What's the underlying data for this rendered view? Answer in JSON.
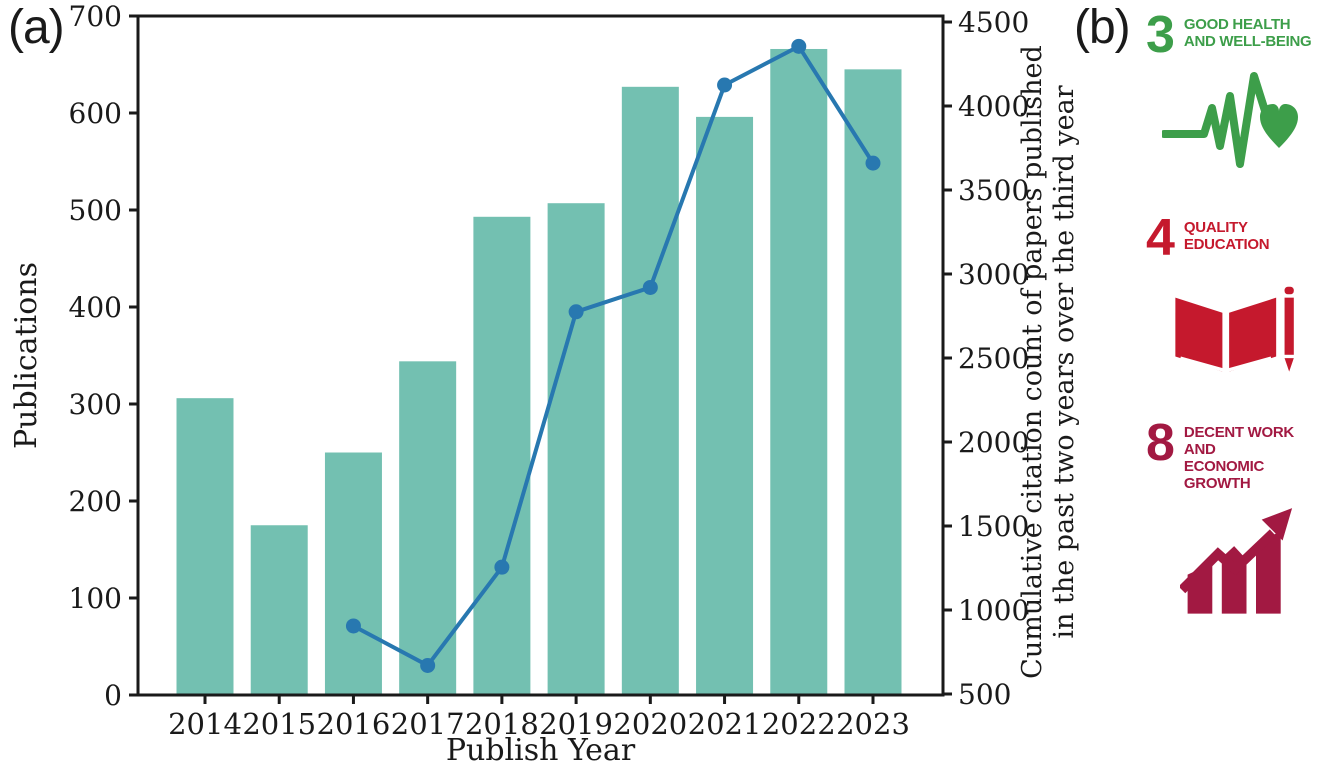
{
  "figure": {
    "panel_a_label": "(a)",
    "panel_b_label": "(b)"
  },
  "chart_data": {
    "type": "bar",
    "title": "",
    "xlabel": "Publish Year",
    "ylabel_left": "Publications",
    "ylabel_right_line1": "Cumulative citation count of papers published",
    "ylabel_right_line2": "in the past two years over the third year",
    "categories": [
      "2014",
      "2015",
      "2016",
      "2017",
      "2018",
      "2019",
      "2020",
      "2021",
      "2022",
      "2023"
    ],
    "series": [
      {
        "name": "Publications",
        "type": "bar",
        "axis": "left",
        "color": "#73c0b1",
        "values": [
          306,
          175,
          250,
          344,
          493,
          507,
          627,
          596,
          666,
          645
        ]
      },
      {
        "name": "Cumulative citation count",
        "type": "line",
        "axis": "right",
        "color": "#2878b0",
        "x": [
          "2016",
          "2017",
          "2018",
          "2019",
          "2020",
          "2021",
          "2022",
          "2023"
        ],
        "values": [
          905,
          670,
          1255,
          2775,
          2920,
          4125,
          4355,
          3660
        ]
      }
    ],
    "left_axis": {
      "min": 0,
      "max": 700,
      "step": 100,
      "ticks": [
        "0",
        "100",
        "200",
        "300",
        "400",
        "500",
        "600",
        "700"
      ]
    },
    "right_axis": {
      "min": 500,
      "max": 4500,
      "step": 500,
      "ticks": [
        "500",
        "1000",
        "1500",
        "2000",
        "2500",
        "3000",
        "3500",
        "4000",
        "4500"
      ]
    },
    "grid": false,
    "legend": "none",
    "text_color": "#1a1a1a"
  },
  "sdg_panel": {
    "items": [
      {
        "number": "3",
        "title_line1": "GOOD HEALTH",
        "title_line2": "AND WELL-BEING",
        "color": "#3d9e4a",
        "icon": "heartbeat-heart-icon"
      },
      {
        "number": "4",
        "title_line1": "QUALITY",
        "title_line2": "EDUCATION",
        "color": "#c5192d",
        "icon": "open-book-pencil-icon"
      },
      {
        "number": "8",
        "title_line1": "DECENT WORK AND",
        "title_line2": "ECONOMIC GROWTH",
        "color": "#a21942",
        "icon": "growth-chart-arrow-icon"
      }
    ]
  }
}
